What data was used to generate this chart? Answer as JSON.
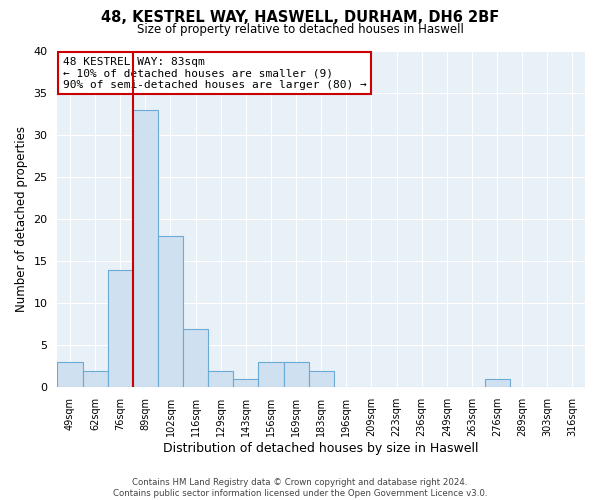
{
  "title": "48, KESTREL WAY, HASWELL, DURHAM, DH6 2BF",
  "subtitle": "Size of property relative to detached houses in Haswell",
  "xlabel": "Distribution of detached houses by size in Haswell",
  "ylabel": "Number of detached properties",
  "bin_labels": [
    "49sqm",
    "62sqm",
    "76sqm",
    "89sqm",
    "102sqm",
    "116sqm",
    "129sqm",
    "143sqm",
    "156sqm",
    "169sqm",
    "183sqm",
    "196sqm",
    "209sqm",
    "223sqm",
    "236sqm",
    "249sqm",
    "263sqm",
    "276sqm",
    "289sqm",
    "303sqm",
    "316sqm"
  ],
  "bar_heights": [
    3,
    2,
    14,
    33,
    18,
    7,
    2,
    1,
    3,
    3,
    2,
    0,
    0,
    0,
    0,
    0,
    0,
    1,
    0,
    0,
    0
  ],
  "bar_color": "#cfe0f0",
  "bar_edge_color": "#6aaad4",
  "vline_x_index": 2.5,
  "vline_color": "#cc0000",
  "annotation_title": "48 KESTREL WAY: 83sqm",
  "annotation_line1": "← 10% of detached houses are smaller (9)",
  "annotation_line2": "90% of semi-detached houses are larger (80) →",
  "annotation_box_edge": "#cc0000",
  "ylim": [
    0,
    40
  ],
  "yticks": [
    0,
    5,
    10,
    15,
    20,
    25,
    30,
    35,
    40
  ],
  "footer_line1": "Contains HM Land Registry data © Crown copyright and database right 2024.",
  "footer_line2": "Contains public sector information licensed under the Open Government Licence v3.0.",
  "background_color": "#ffffff",
  "plot_bg_color": "#e8f0f8",
  "grid_color": "#ffffff"
}
